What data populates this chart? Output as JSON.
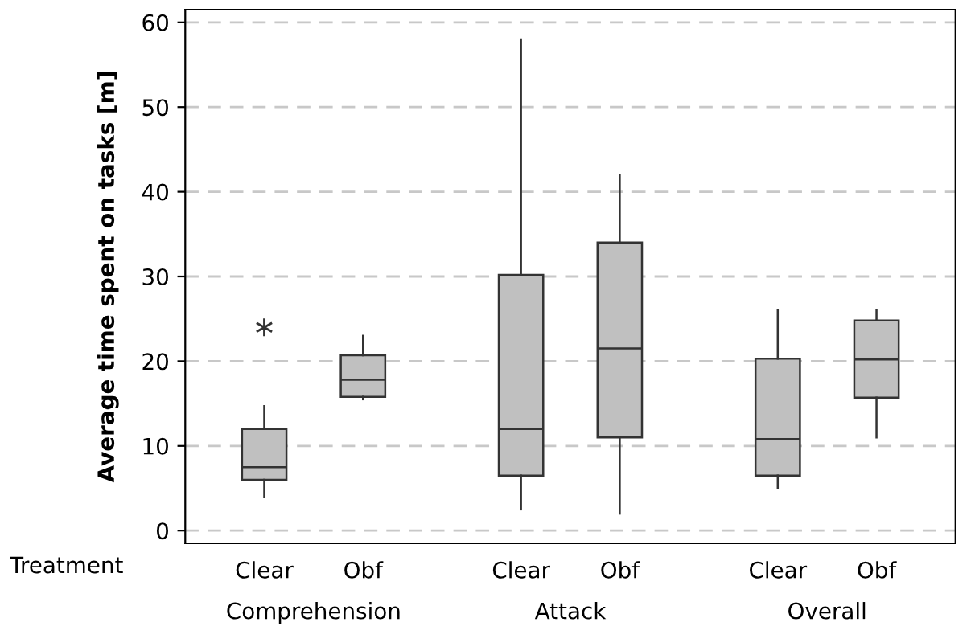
{
  "chart_data": {
    "type": "box",
    "ylabel": "Average time spent on tasks [m]",
    "categories": [
      "Clear",
      "Obf",
      "Clear",
      "Obf",
      "Clear",
      "Obf"
    ],
    "boxes": [
      {
        "low": 4,
        "q1": 6,
        "median": 7.5,
        "q3": 12,
        "high": 14.7,
        "outliers": [
          24
        ]
      },
      {
        "low": 15.5,
        "q1": 15.8,
        "median": 17.8,
        "q3": 20.7,
        "high": 23
      },
      {
        "low": 2.5,
        "q1": 6.5,
        "median": 12,
        "q3": 30.2,
        "high": 58
      },
      {
        "low": 2,
        "q1": 11,
        "median": 21.5,
        "q3": 34,
        "high": 42
      },
      {
        "low": 5,
        "q1": 6.5,
        "median": 10.8,
        "q3": 20.3,
        "high": 26
      },
      {
        "low": 11,
        "q1": 15.7,
        "median": 20.2,
        "q3": 24.8,
        "high": 26
      }
    ],
    "color": "#c0c0c0",
    "annotations": [
      "Treatment",
      "Comprehension",
      "Attack",
      "Overall"
    ],
    "ylim": [
      -1.5,
      61.5
    ],
    "yticks": [
      0,
      10,
      20,
      30,
      40,
      50,
      60
    ],
    "grid": "y",
    "marker": "star"
  }
}
